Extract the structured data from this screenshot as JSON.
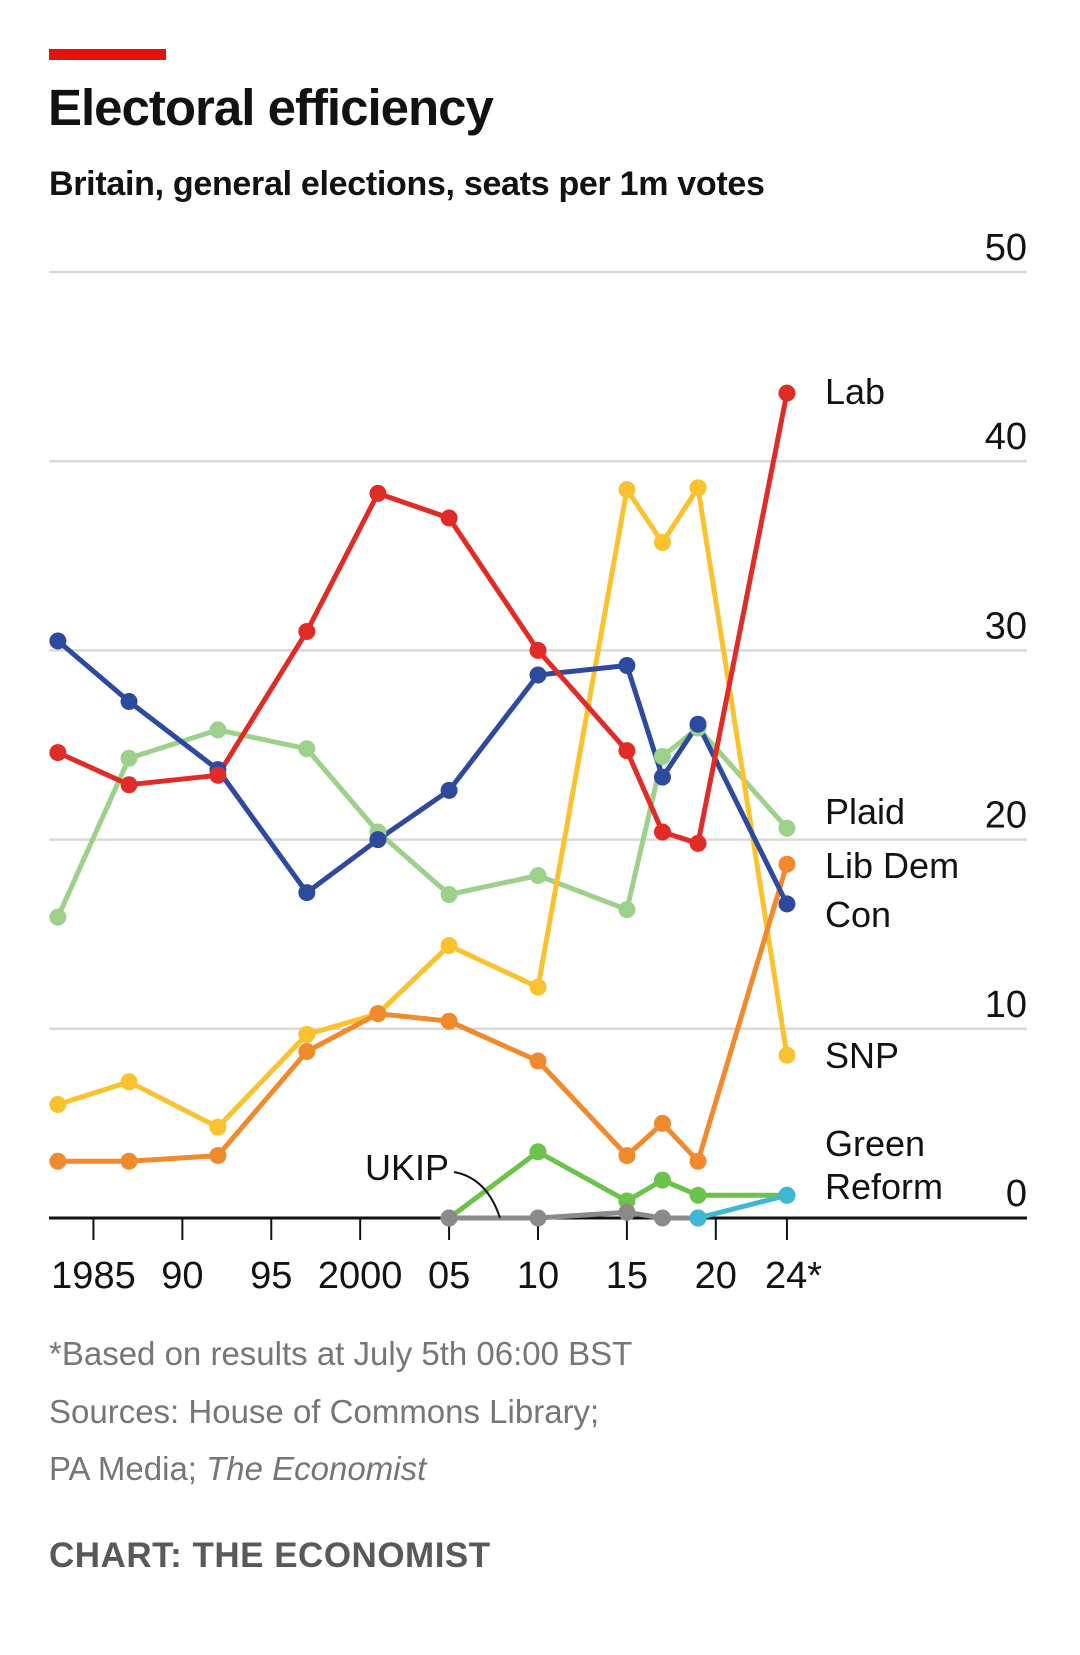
{
  "header": {
    "title": "Electoral efficiency",
    "subtitle": "Britain, general elections, seats per 1m votes",
    "accent_color": "#e3120b"
  },
  "footer": {
    "footnote": "*Based on results at July 5th 06:00 BST",
    "sources_line1": "Sources: House of Commons Library;",
    "sources_line2_prefix": "PA Media; ",
    "sources_line2_italic": "The Economist",
    "credit": "CHART: THE ECONOMIST"
  },
  "chart_data": {
    "type": "line",
    "x_tick_labels": [
      {
        "year": 1985,
        "label": "1985"
      },
      {
        "year": 1990,
        "label": "90"
      },
      {
        "year": 1995,
        "label": "95"
      },
      {
        "year": 2000,
        "label": "2000"
      },
      {
        "year": 2005,
        "label": "05"
      },
      {
        "year": 2010,
        "label": "10"
      },
      {
        "year": 2015,
        "label": "15"
      },
      {
        "year": 2020,
        "label": "20"
      },
      {
        "year": 2024,
        "label": "24*"
      }
    ],
    "xlim": [
      1982.5,
      2037.5
    ],
    "y_ticks": [
      0,
      10,
      20,
      30,
      40,
      50
    ],
    "ylim": [
      0,
      50
    ],
    "y_axis_side": "right",
    "grid": true,
    "series": [
      {
        "name": "Plaid",
        "color": "#9dd18b",
        "x": [
          1983,
          1987,
          1992,
          1997,
          2001,
          2005,
          2010,
          2015,
          2017,
          2019,
          2024
        ],
        "values": [
          15.9,
          24.3,
          25.8,
          24.8,
          20.4,
          17.1,
          18.1,
          16.3,
          24.4,
          25.9,
          20.6
        ]
      },
      {
        "name": "SNP",
        "color": "#f9c22e",
        "x": [
          1983,
          1987,
          1992,
          1997,
          2001,
          2005,
          2010,
          2015,
          2017,
          2019,
          2024
        ],
        "values": [
          6.0,
          7.2,
          4.8,
          9.7,
          10.8,
          14.4,
          12.2,
          38.5,
          35.7,
          38.6,
          8.6
        ]
      },
      {
        "name": "Lib Dem",
        "color": "#f08a2c",
        "x": [
          1983,
          1987,
          1992,
          1997,
          2001,
          2005,
          2010,
          2015,
          2017,
          2019,
          2024
        ],
        "values": [
          3.0,
          3.0,
          3.3,
          8.8,
          10.8,
          10.4,
          8.3,
          3.3,
          5.0,
          3.0,
          18.7
        ]
      },
      {
        "name": "Green",
        "color": "#6cc24a",
        "x": [
          2005,
          2010,
          2015,
          2017,
          2019,
          2024
        ],
        "values": [
          0,
          3.5,
          0.9,
          2.0,
          1.2,
          1.2
        ]
      },
      {
        "name": "UKIP",
        "color": "#8a8a8a",
        "x": [
          2005,
          2010,
          2015,
          2017,
          2019
        ],
        "values": [
          0,
          0,
          0.3,
          0,
          0
        ]
      },
      {
        "name": "Reform",
        "color": "#3cb8d3",
        "x": [
          2019,
          2024
        ],
        "values": [
          0,
          1.2
        ]
      },
      {
        "name": "Con",
        "color": "#2e4a9e",
        "x": [
          1983,
          1987,
          1992,
          1997,
          2001,
          2005,
          2010,
          2015,
          2017,
          2019,
          2024
        ],
        "values": [
          30.5,
          27.3,
          23.7,
          17.2,
          20.0,
          22.6,
          28.7,
          29.2,
          23.3,
          26.1,
          16.6
        ]
      },
      {
        "name": "Lab",
        "color": "#e02b27",
        "x": [
          1983,
          1987,
          1992,
          1997,
          2001,
          2005,
          2010,
          2015,
          2017,
          2019,
          2024
        ],
        "values": [
          24.6,
          22.9,
          23.4,
          31.0,
          38.3,
          37.0,
          30.0,
          24.7,
          20.4,
          19.8,
          43.6
        ]
      }
    ]
  }
}
